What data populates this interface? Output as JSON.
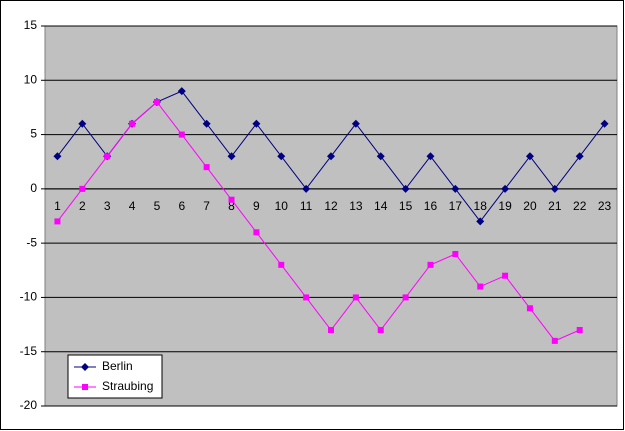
{
  "chart_data": {
    "type": "line",
    "categories": [
      "1",
      "2",
      "3",
      "4",
      "5",
      "6",
      "7",
      "8",
      "9",
      "10",
      "11",
      "12",
      "13",
      "14",
      "15",
      "16",
      "17",
      "18",
      "19",
      "20",
      "21",
      "22",
      "23"
    ],
    "series": [
      {
        "name": "Berlin",
        "color": "#000080",
        "marker": "diamond",
        "values": [
          3,
          6,
          3,
          6,
          8,
          9,
          6,
          3,
          6,
          3,
          0,
          3,
          6,
          3,
          0,
          3,
          0,
          -3,
          0,
          3,
          0,
          3,
          6
        ]
      },
      {
        "name": "Straubing",
        "color": "#ff00ff",
        "marker": "square",
        "values": [
          -3,
          0,
          3,
          6,
          8,
          5,
          2,
          -1,
          -4,
          -7,
          -10,
          -13,
          -10,
          -13,
          -10,
          -7,
          -6,
          -9,
          -8,
          -11,
          -14,
          -13,
          null
        ]
      }
    ],
    "ylim": [
      -20,
      15
    ],
    "yticks": [
      -20,
      -15,
      -10,
      -5,
      0,
      5,
      10,
      15
    ],
    "grid": true,
    "legend": "lower left",
    "plot_color": "#c0c0c0"
  }
}
